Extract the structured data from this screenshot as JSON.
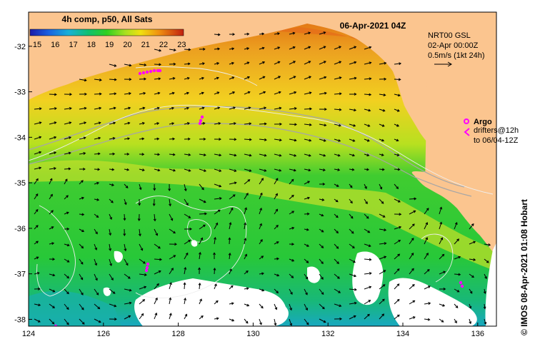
{
  "title": "06-Apr-2021 04Z",
  "colorbar": {
    "title": "4h comp, p50, All Sats",
    "ticks": [
      "15",
      "16",
      "17",
      "18",
      "19",
      "20",
      "21",
      "22",
      "23"
    ],
    "range": [
      15,
      23.5
    ]
  },
  "legend": {
    "line1": "NRT00 GSL",
    "line2": "02-Apr 00:00Z",
    "line3": "0.5m/s (1kt 24h)",
    "argo_label": "Argo",
    "drifters_line1": "drifters@12h",
    "drifters_line2": "to 06/04-12Z",
    "argo_marker_color": "#ff00ff"
  },
  "side_text": "© IMOS 08-Apr-2021 01:08 Hobart",
  "axes": {
    "x_ticks": [
      "124",
      "126",
      "128",
      "130",
      "132",
      "134",
      "136"
    ],
    "x_values": [
      124,
      126,
      128,
      130,
      132,
      134,
      136
    ],
    "y_ticks": [
      "-32",
      "-33",
      "-34",
      "-35",
      "-36",
      "-37",
      "-38"
    ],
    "y_values": [
      -32,
      -33,
      -34,
      -35,
      -36,
      -37,
      -38
    ],
    "lon_range": [
      124,
      136.5
    ],
    "lat_range": [
      -38.15,
      -31.25
    ]
  },
  "colors": {
    "land": "#fbc58f",
    "no_data": "#ffffff",
    "arrow": "#000000",
    "contour": "#dddddd",
    "bathymetry": "#a6a6a6"
  }
}
